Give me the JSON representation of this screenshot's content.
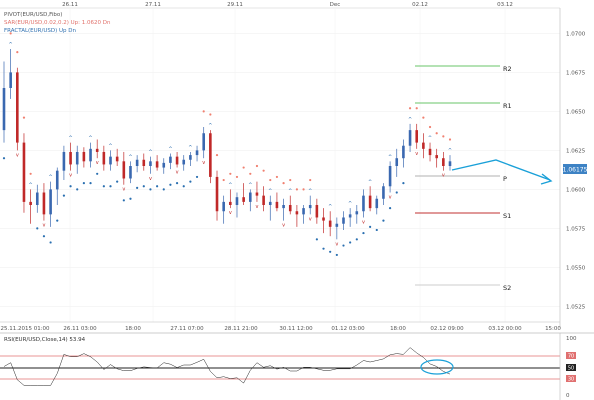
{
  "legend": [
    {
      "text": "PIVOT(EUR/USD,Fibo)",
      "color": "#555555"
    },
    {
      "text": "SAR(EUR/USD,0.02,0.2)   Up: 1.0620   Dn",
      "color": "#e0706a"
    },
    {
      "text": "FRACTAL(EUR/USD)   Up Dn",
      "color": "#3070b0"
    }
  ],
  "top_axis": [
    "26.11",
    "27.11",
    "29.11",
    "Dec",
    "02.12",
    "03.12"
  ],
  "pivot_levels": [
    {
      "name": "R2",
      "value": 1.0668,
      "color": "#6ac46a"
    },
    {
      "name": "R1",
      "value": 1.0656,
      "color": "#6ac46a"
    },
    {
      "name": "P",
      "value": 1.0615,
      "color": "#b0b0b0"
    },
    {
      "name": "S1",
      "value": 1.0588,
      "color": "#c03030"
    },
    {
      "name": "S2",
      "value": 1.0546,
      "color": "#cccccc"
    }
  ],
  "price_axis": {
    "ticks": [
      "1.0700",
      "1.0675",
      "1.0650",
      "1.0625",
      "1.0600",
      "1.0575",
      "1.0550",
      "1.0525"
    ],
    "current": "1.06175"
  },
  "x_axis": [
    "25.11.2015 01:00",
    "26.11 03:00",
    "18:00",
    "27.11 07:00",
    "28.11 21:00",
    "30.11 12:00",
    "01.12 03:00",
    "18:00",
    "02.12 09:00",
    "03.12 00:00",
    "15:00"
  ],
  "rsi": {
    "label": "RSI(EUR/USD,Close,14)   53.94",
    "ticks": [
      "100",
      "70",
      "50",
      "30",
      "0"
    ]
  },
  "chart_data": {
    "type": "candlestick",
    "ylim": [
      1.0515,
      1.0715
    ],
    "candles": [
      [
        1.0638,
        1.0682,
        1.063,
        1.0665
      ],
      [
        1.0665,
        1.069,
        1.0658,
        1.0675
      ],
      [
        1.0675,
        1.0678,
        1.0625,
        1.063
      ],
      [
        1.063,
        1.0636,
        1.0585,
        1.0592
      ],
      [
        1.0592,
        1.06,
        1.0578,
        1.059
      ],
      [
        1.059,
        1.0603,
        1.0585,
        1.0598
      ],
      [
        1.0598,
        1.0604,
        1.058,
        1.0584
      ],
      [
        1.0584,
        1.0605,
        1.0576,
        1.06
      ],
      [
        1.06,
        1.0614,
        1.059,
        1.0612
      ],
      [
        1.0612,
        1.0628,
        1.0606,
        1.0624
      ],
      [
        1.0624,
        1.063,
        1.0612,
        1.0616
      ],
      [
        1.0616,
        1.0628,
        1.061,
        1.0624
      ],
      [
        1.0624,
        1.0627,
        1.0614,
        1.0618
      ],
      [
        1.0618,
        1.063,
        1.0614,
        1.0626
      ],
      [
        1.0626,
        1.0632,
        1.062,
        1.0624
      ],
      [
        1.0624,
        1.0628,
        1.0612,
        1.0616
      ],
      [
        1.0616,
        1.0625,
        1.0612,
        1.0621
      ],
      [
        1.0621,
        1.0626,
        1.0615,
        1.0618
      ],
      [
        1.0618,
        1.0624,
        1.0603,
        1.0607
      ],
      [
        1.0607,
        1.0618,
        1.0604,
        1.0615
      ],
      [
        1.0615,
        1.0622,
        1.0611,
        1.0619
      ],
      [
        1.0619,
        1.0623,
        1.0612,
        1.0615
      ],
      [
        1.0615,
        1.0621,
        1.061,
        1.0618
      ],
      [
        1.0618,
        1.0622,
        1.0612,
        1.0614
      ],
      [
        1.0614,
        1.062,
        1.061,
        1.0617
      ],
      [
        1.0617,
        1.0623,
        1.0613,
        1.0621
      ],
      [
        1.0621,
        1.0624,
        1.0614,
        1.0616
      ],
      [
        1.0616,
        1.0622,
        1.0612,
        1.0619
      ],
      [
        1.0619,
        1.0624,
        1.0615,
        1.0622
      ],
      [
        1.0622,
        1.0628,
        1.0618,
        1.0625
      ],
      [
        1.0625,
        1.064,
        1.062,
        1.0636
      ],
      [
        1.0636,
        1.0638,
        1.0604,
        1.0608
      ],
      [
        1.0608,
        1.0612,
        1.058,
        1.0586
      ],
      [
        1.0586,
        1.0596,
        1.0578,
        1.0592
      ],
      [
        1.0592,
        1.06,
        1.0588,
        1.059
      ],
      [
        1.059,
        1.0598,
        1.0582,
        1.0595
      ],
      [
        1.0595,
        1.0604,
        1.059,
        1.0592
      ],
      [
        1.0592,
        1.06,
        1.0586,
        1.0598
      ],
      [
        1.0598,
        1.0605,
        1.0592,
        1.0596
      ],
      [
        1.0596,
        1.0602,
        1.0586,
        1.059
      ],
      [
        1.059,
        1.0596,
        1.058,
        1.0592
      ],
      [
        1.0592,
        1.0598,
        1.0586,
        1.0588
      ],
      [
        1.0588,
        1.0594,
        1.058,
        1.059
      ],
      [
        1.059,
        1.0596,
        1.0584,
        1.0586
      ],
      [
        1.0586,
        1.059,
        1.0576,
        1.0584
      ],
      [
        1.0584,
        1.059,
        1.0578,
        1.0588
      ],
      [
        1.0588,
        1.0596,
        1.0584,
        1.059
      ],
      [
        1.059,
        1.0594,
        1.0578,
        1.0582
      ],
      [
        1.0582,
        1.0588,
        1.0572,
        1.058
      ],
      [
        1.058,
        1.0586,
        1.057,
        1.0576
      ],
      [
        1.0576,
        1.0582,
        1.0568,
        1.0578
      ],
      [
        1.0578,
        1.0586,
        1.0574,
        1.0582
      ],
      [
        1.0582,
        1.0588,
        1.0576,
        1.0584
      ],
      [
        1.0584,
        1.059,
        1.0578,
        1.0586
      ],
      [
        1.0586,
        1.06,
        1.0582,
        1.0596
      ],
      [
        1.0596,
        1.0602,
        1.0586,
        1.0588
      ],
      [
        1.0588,
        1.0596,
        1.0584,
        1.0594
      ],
      [
        1.0594,
        1.0604,
        1.059,
        1.0602
      ],
      [
        1.0602,
        1.0618,
        1.0598,
        1.0615
      ],
      [
        1.0615,
        1.0626,
        1.0608,
        1.062
      ],
      [
        1.062,
        1.0632,
        1.0614,
        1.0628
      ],
      [
        1.0628,
        1.0642,
        1.0624,
        1.0638
      ],
      [
        1.0638,
        1.0642,
        1.0626,
        1.063
      ],
      [
        1.063,
        1.0636,
        1.062,
        1.0626
      ],
      [
        1.0626,
        1.063,
        1.0618,
        1.0622
      ],
      [
        1.0622,
        1.0626,
        1.0614,
        1.062
      ],
      [
        1.062,
        1.0624,
        1.0612,
        1.0615
      ],
      [
        1.0615,
        1.0622,
        1.0612,
        1.0618
      ]
    ]
  }
}
